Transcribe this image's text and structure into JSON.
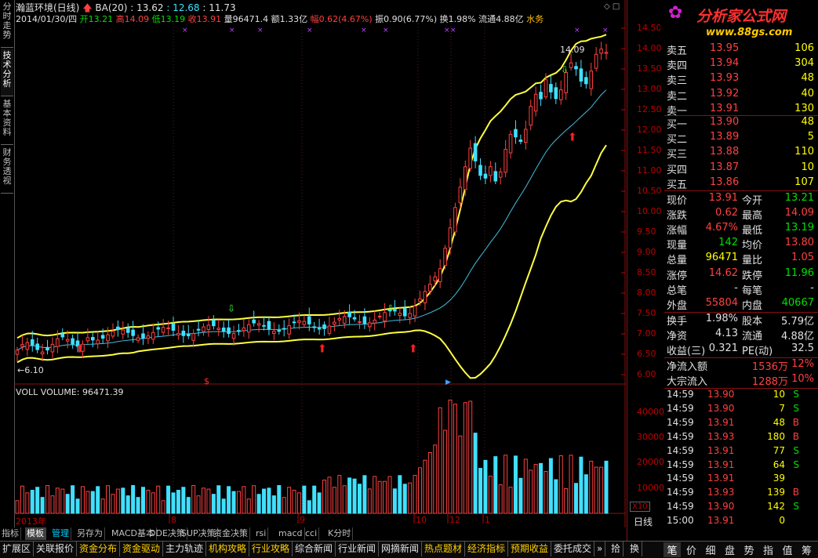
{
  "left_tabs": [
    "分时走势",
    "技术分析",
    "基本资料",
    "财务透视"
  ],
  "header": {
    "name": "瀚蓝环境(日线)",
    "indicator": "BA(20)",
    "ind_v1": ": 13.62",
    "ind_v2": ": 12.68",
    "ind_v3": ": 11.73",
    "date": "2014/01/30/四",
    "open": "开13.21",
    "high": "高14.09",
    "low": "低13.19",
    "close": "收13.91",
    "vol": "量96471.4",
    "amount": "额1.33亿",
    "pct": "幅0.62(4.67%)",
    "amp": "振0.90(6.77%)",
    "turnover": "换1.98%",
    "float": "流通4.88亿",
    "industry": "水务"
  },
  "price_axis": [
    "14.50",
    "14.00",
    "13.50",
    "13.00",
    "12.50",
    "12.00",
    "11.50",
    "11.00",
    "10.50",
    "10.00",
    "9.50",
    "9.00",
    "8.50",
    "8.00",
    "7.50",
    "7.00",
    "6.50",
    "6.00"
  ],
  "price_annotations": {
    "high": "14.09",
    "low": "←6.10"
  },
  "volume_header": "VOLL VOLUME: 96471.39",
  "volume_axis": [
    "40000",
    "30000",
    "20000",
    "10000"
  ],
  "volume_unit": "X10",
  "date_axis": [
    "2013年",
    "8",
    "9",
    "10",
    "12",
    "1"
  ],
  "period_label": "日线",
  "logo": {
    "title": "分析家公式网",
    "url": "www.88gs.com"
  },
  "order_book": {
    "sells": [
      {
        "label": "卖五",
        "price": "13.95",
        "vol": "106"
      },
      {
        "label": "卖四",
        "price": "13.94",
        "vol": "304"
      },
      {
        "label": "卖三",
        "price": "13.93",
        "vol": "48"
      },
      {
        "label": "卖二",
        "price": "13.92",
        "vol": "40"
      },
      {
        "label": "卖一",
        "price": "13.91",
        "vol": "130"
      }
    ],
    "buys": [
      {
        "label": "买一",
        "price": "13.90",
        "vol": "48"
      },
      {
        "label": "买二",
        "price": "13.89",
        "vol": "5"
      },
      {
        "label": "买三",
        "price": "13.88",
        "vol": "110"
      },
      {
        "label": "买四",
        "price": "13.87",
        "vol": "10"
      },
      {
        "label": "买五",
        "price": "13.86",
        "vol": "107"
      }
    ]
  },
  "quote": [
    {
      "l1": "现价",
      "v1": "13.91",
      "l2": "今开",
      "v2": "13.21",
      "c1": "red",
      "c2": "green"
    },
    {
      "l1": "涨跌",
      "v1": "0.62",
      "l2": "最高",
      "v2": "14.09",
      "c1": "red",
      "c2": "red"
    },
    {
      "l1": "涨幅",
      "v1": "4.67%",
      "l2": "最低",
      "v2": "13.19",
      "c1": "red",
      "c2": "green"
    },
    {
      "l1": "现量",
      "v1": "142",
      "l2": "均价",
      "v2": "13.80",
      "c1": "green",
      "c2": "red"
    },
    {
      "l1": "总量",
      "v1": "96471",
      "l2": "量比",
      "v2": "1.05",
      "c1": "yellow",
      "c2": "red"
    },
    {
      "l1": "涨停",
      "v1": "14.62",
      "l2": "跌停",
      "v2": "11.96",
      "c1": "red",
      "c2": "green"
    },
    {
      "l1": "总笔",
      "v1": "-",
      "l2": "每笔",
      "v2": "-",
      "c1": "white",
      "c2": "white"
    },
    {
      "l1": "外盘",
      "v1": "55804",
      "l2": "内盘",
      "v2": "40667",
      "c1": "red",
      "c2": "green"
    }
  ],
  "fundamentals": [
    {
      "l1": "换手",
      "v1": "1.98%",
      "l2": "股本",
      "v2": "5.79亿"
    },
    {
      "l1": "净资",
      "v1": "4.13",
      "l2": "流通",
      "v2": "4.88亿"
    },
    {
      "l1": "收益(三)",
      "v1": "0.321",
      "l2": "PE(动)",
      "v2": "32.5"
    }
  ],
  "flows": [
    {
      "label": "净流入额",
      "value": "1536万",
      "pct": "12%"
    },
    {
      "label": "大宗流入",
      "value": "1288万",
      "pct": "10%"
    }
  ],
  "ticks": [
    {
      "time": "14:59",
      "price": "13.90",
      "vol": "10",
      "side": "S"
    },
    {
      "time": "14:59",
      "price": "13.90",
      "vol": "7",
      "side": "S"
    },
    {
      "time": "14:59",
      "price": "13.91",
      "vol": "48",
      "side": "B"
    },
    {
      "time": "14:59",
      "price": "13.93",
      "vol": "180",
      "side": "B"
    },
    {
      "time": "14:59",
      "price": "13.91",
      "vol": "77",
      "side": "S"
    },
    {
      "time": "14:59",
      "price": "13.91",
      "vol": "64",
      "side": "S"
    },
    {
      "time": "14:59",
      "price": "13.91",
      "vol": "39",
      "side": ""
    },
    {
      "time": "14:59",
      "price": "13.93",
      "vol": "139",
      "side": "B"
    },
    {
      "time": "14:59",
      "price": "13.90",
      "vol": "142",
      "side": "S"
    },
    {
      "time": "15:00",
      "price": "13.91",
      "vol": "0",
      "side": ""
    }
  ],
  "indicator_tabs": [
    "指标",
    "模板",
    "管理",
    "另存为",
    "MACD基本",
    "DDE决策",
    "SUP决策",
    "资金决策",
    "rsi",
    "macd",
    "cci",
    "K分时"
  ],
  "bottom_tabs": [
    "扩展区",
    "关联报价",
    "资金分布",
    "资金驱动",
    "主力轨迹",
    "机构攻略",
    "行业攻略",
    "综合新闻",
    "行业新闻",
    "网摘新闻",
    "热点题材",
    "经济指标",
    "预期收益",
    "委托成交"
  ],
  "bottom_nav": [
    "»",
    "拾",
    "换"
  ],
  "right_tabs": [
    "笔",
    "价",
    "细",
    "盘",
    "势",
    "指",
    "值",
    "筹"
  ]
}
